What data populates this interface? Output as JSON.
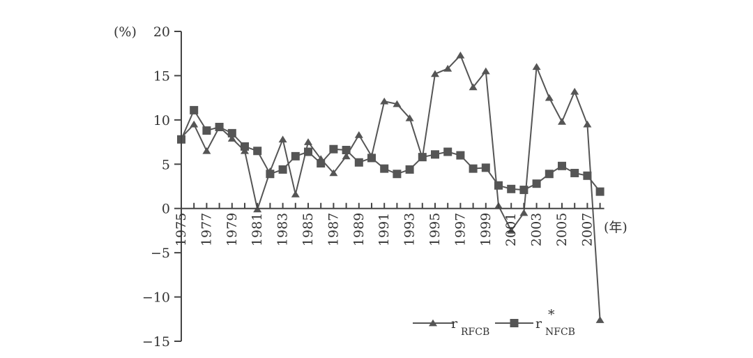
{
  "chart_data": {
    "type": "line",
    "y_unit_label": "(%)",
    "x_unit_label": "(年)",
    "ylim": [
      -15,
      20
    ],
    "y_ticks": [
      20,
      15,
      10,
      5,
      0,
      -5,
      -10,
      -15
    ],
    "y_tick_labels": [
      "20",
      "15",
      "10",
      "5",
      "0",
      "−5",
      "−10",
      "−15"
    ],
    "x_tick_labels": [
      "1975",
      "1977",
      "1979",
      "1981",
      "1983",
      "1985",
      "1987",
      "1989",
      "1991",
      "1993",
      "1995",
      "1997",
      "1999",
      "2001",
      "2003",
      "2005",
      "2007"
    ],
    "x": [
      1975,
      1976,
      1977,
      1978,
      1979,
      1980,
      1981,
      1982,
      1983,
      1984,
      1985,
      1986,
      1987,
      1988,
      1989,
      1990,
      1991,
      1992,
      1993,
      1994,
      1995,
      1996,
      1997,
      1998,
      1999,
      2000,
      2001,
      2002,
      2003,
      2004,
      2005,
      2006,
      2007,
      2008
    ],
    "series": [
      {
        "name": "r",
        "name_sub": "RFCB",
        "name_sup": "",
        "marker": "triangle",
        "values": [
          8.0,
          9.5,
          6.5,
          9.2,
          7.9,
          6.5,
          -0.1,
          4.2,
          7.8,
          1.6,
          7.5,
          5.6,
          4.0,
          5.9,
          8.3,
          5.9,
          12.1,
          11.8,
          10.2,
          5.7,
          15.2,
          15.8,
          17.3,
          13.7,
          15.5,
          0.3,
          -2.5,
          -0.5,
          16.0,
          12.5,
          9.8,
          13.2,
          9.5,
          -12.6
        ]
      },
      {
        "name": "r",
        "name_sub": "NFCB",
        "name_sup": "*",
        "marker": "square",
        "values": [
          7.8,
          11.1,
          8.8,
          9.2,
          8.5,
          7.0,
          6.5,
          3.9,
          4.4,
          5.9,
          6.4,
          5.1,
          6.7,
          6.6,
          5.2,
          5.7,
          4.5,
          3.9,
          4.4,
          5.8,
          6.1,
          6.4,
          6.0,
          4.5,
          4.6,
          2.6,
          2.2,
          2.1,
          2.8,
          3.9,
          4.8,
          4.0,
          3.7,
          1.9
        ]
      }
    ],
    "legend_position": "bottom-right"
  }
}
